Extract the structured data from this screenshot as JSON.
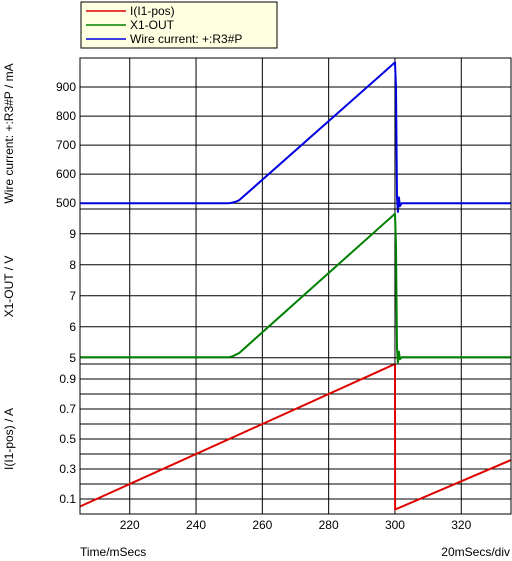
{
  "chart_data": {
    "type": "line",
    "x_range": [
      205,
      335
    ],
    "x_ticks": [
      220,
      240,
      260,
      280,
      300,
      320
    ],
    "x_label": "Time/mSecs",
    "x_scale_note": "20mSecs/div",
    "legend": [
      {
        "name": "I(I1-pos)",
        "color": "#e00000"
      },
      {
        "name": "X1-OUT",
        "color": "#008000"
      },
      {
        "name": "Wire current: +:R3#P",
        "color": "#0000e0"
      }
    ],
    "panels": [
      {
        "ylabel": "Wire current: +:R3#P / mA",
        "ylim": [
          480,
          1000
        ],
        "yticks": [
          500,
          600,
          700,
          800,
          900
        ],
        "series": [
          {
            "name": "Wire current: +:R3#P",
            "color": "#0000e0",
            "x": [
              205,
              250,
              251,
              252,
              253,
              300,
              300.3,
              300.6,
              300.9,
              301.2,
              301.5,
              302,
              335
            ],
            "y": [
              500,
              500,
              502,
              505,
              510,
              985,
              900,
              520,
              470,
              520,
              490,
              500,
              500
            ]
          }
        ]
      },
      {
        "ylabel": "X1-OUT / V",
        "ylim": [
          4.8,
          9.8
        ],
        "yticks": [
          5,
          6,
          7,
          8,
          9
        ],
        "series": [
          {
            "name": "X1-OUT",
            "color": "#008000",
            "x": [
              205,
              250,
              251,
              252,
              253,
              300,
              300.3,
              300.6,
              300.9,
              301.2,
              301.5,
              302,
              335
            ],
            "y": [
              5.02,
              5.02,
              5.05,
              5.1,
              5.15,
              9.65,
              8.6,
              5.3,
              4.85,
              5.2,
              4.95,
              5.02,
              5.02
            ]
          }
        ]
      },
      {
        "ylabel": "I(I1-pos) / A",
        "ylim": [
          0,
          1.0
        ],
        "yticks": [
          0.1,
          0.3,
          0.5,
          0.7,
          0.9
        ],
        "minor_yticks": [
          0.2,
          0.4,
          0.6,
          0.8
        ],
        "series": [
          {
            "name": "I(I1-pos)",
            "color": "#e00000",
            "x": [
              205,
              300,
              300.05,
              335
            ],
            "y": [
              0.05,
              1.0,
              0.03,
              0.36
            ]
          }
        ]
      }
    ]
  }
}
